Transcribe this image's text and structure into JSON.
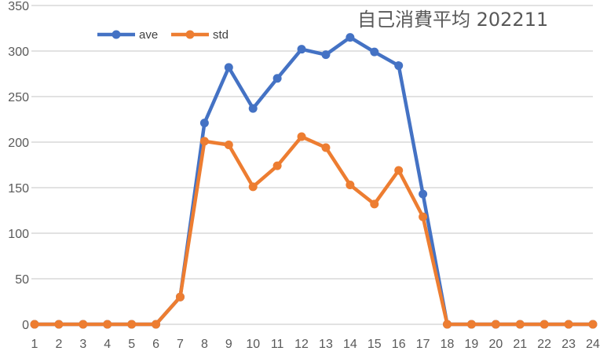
{
  "chart_data": {
    "type": "line",
    "title": "自己消費平均  202211",
    "xlabel": "",
    "ylabel": "",
    "categories": [
      1,
      2,
      3,
      4,
      5,
      6,
      7,
      8,
      9,
      10,
      11,
      12,
      13,
      14,
      15,
      16,
      17,
      18,
      19,
      20,
      21,
      22,
      23,
      24
    ],
    "series": [
      {
        "name": "ave",
        "color": "#4472C4",
        "values": [
          0,
          0,
          0,
          0,
          0,
          0,
          30,
          221,
          282,
          237,
          270,
          302,
          296,
          315,
          299,
          284,
          143,
          0,
          0,
          0,
          0,
          0,
          0,
          0
        ]
      },
      {
        "name": "std",
        "color": "#ED7D31",
        "values": [
          0,
          0,
          0,
          0,
          0,
          0,
          30,
          201,
          197,
          151,
          174,
          206,
          194,
          153,
          132,
          169,
          118,
          0,
          0,
          0,
          0,
          0,
          0,
          0
        ]
      }
    ],
    "ylim": [
      0,
      350
    ],
    "yticks": [
      0,
      50,
      100,
      150,
      200,
      250,
      300,
      350
    ],
    "grid": true,
    "legend_position": "top-left-inside"
  },
  "legend": {
    "items": [
      {
        "label": "ave",
        "color": "#4472C4"
      },
      {
        "label": "std",
        "color": "#ED7D31"
      }
    ]
  }
}
